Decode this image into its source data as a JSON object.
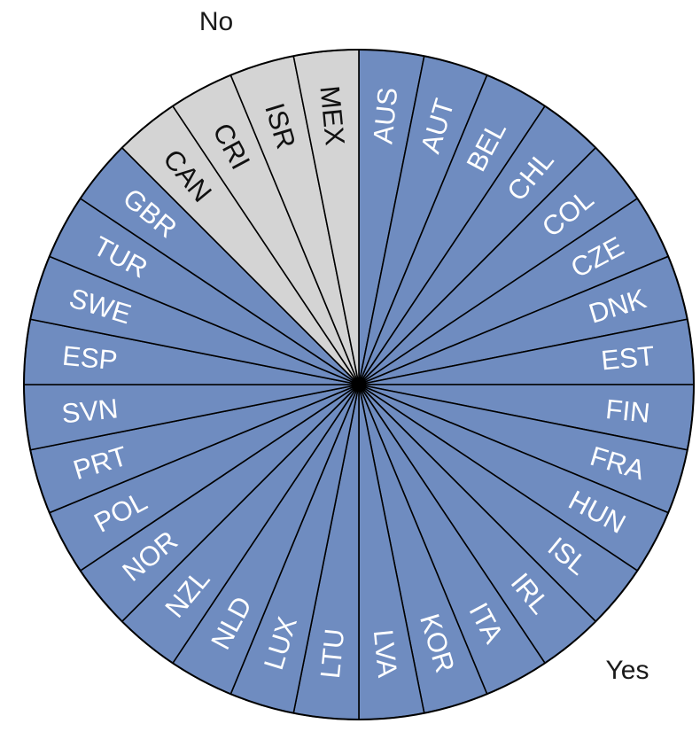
{
  "chart_data": {
    "type": "pie",
    "categories": [
      "AUS",
      "AUT",
      "BEL",
      "CHL",
      "COL",
      "CZE",
      "DNK",
      "EST",
      "FIN",
      "FRA",
      "HUN",
      "ISL",
      "IRL",
      "ITA",
      "KOR",
      "LVA",
      "LTU",
      "LUX",
      "NLD",
      "NZL",
      "NOR",
      "POL",
      "PRT",
      "SVN",
      "ESP",
      "SWE",
      "TUR",
      "GBR",
      "CAN",
      "CRI",
      "ISR",
      "MEX"
    ],
    "groups": [
      "Yes",
      "Yes",
      "Yes",
      "Yes",
      "Yes",
      "Yes",
      "Yes",
      "Yes",
      "Yes",
      "Yes",
      "Yes",
      "Yes",
      "Yes",
      "Yes",
      "Yes",
      "Yes",
      "Yes",
      "Yes",
      "Yes",
      "Yes",
      "Yes",
      "Yes",
      "Yes",
      "Yes",
      "Yes",
      "Yes",
      "Yes",
      "Yes",
      "No",
      "No",
      "No",
      "No"
    ],
    "values": [
      1,
      1,
      1,
      1,
      1,
      1,
      1,
      1,
      1,
      1,
      1,
      1,
      1,
      1,
      1,
      1,
      1,
      1,
      1,
      1,
      1,
      1,
      1,
      1,
      1,
      1,
      1,
      1,
      1,
      1,
      1,
      1
    ],
    "legend": {
      "yes_label": "Yes",
      "no_label": "No"
    },
    "colors": {
      "Yes": "#6f8cc0",
      "No": "#d4d4d4",
      "yes_text": "#ffffff",
      "no_text": "#111111",
      "edge": "#000000"
    }
  }
}
